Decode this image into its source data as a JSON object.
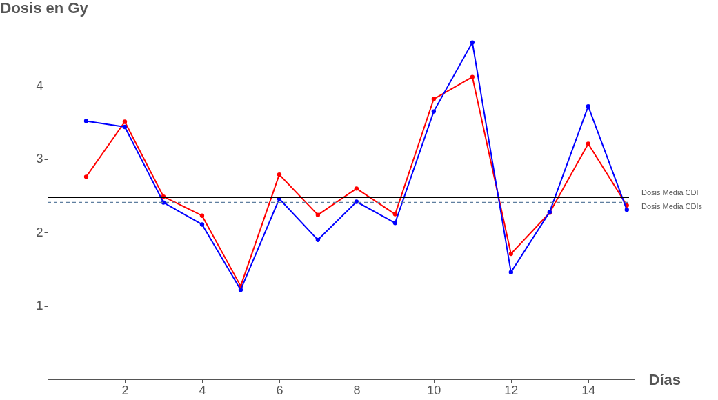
{
  "chart_data": {
    "type": "line",
    "xlabel": "Días",
    "ylabel": "Dosis en Gy",
    "x": [
      1,
      2,
      3,
      4,
      5,
      6,
      7,
      8,
      9,
      10,
      11,
      12,
      13,
      14,
      15
    ],
    "series": [
      {
        "color": "#0000ff",
        "values": [
          3.52,
          3.44,
          2.41,
          2.11,
          1.22,
          2.46,
          1.9,
          2.42,
          2.13,
          3.65,
          4.59,
          1.46,
          2.28,
          3.72,
          2.31
        ]
      },
      {
        "color": "#ff0000",
        "values": [
          2.76,
          3.51,
          2.49,
          2.23,
          1.27,
          2.79,
          2.24,
          2.6,
          2.25,
          3.82,
          4.12,
          1.71,
          2.27,
          3.21,
          2.37
        ]
      }
    ],
    "xlim": [
      0,
      15.2
    ],
    "ylim": [
      0,
      4.84
    ],
    "xticks": [
      2,
      4,
      6,
      8,
      10,
      12,
      14
    ],
    "yticks": [
      1,
      2,
      3,
      4
    ],
    "ref_lines": [
      {
        "axis": "y",
        "value": 2.48,
        "label": "Dosis Media CDI",
        "color": "#000000",
        "line_style": "solid"
      },
      {
        "axis": "y",
        "value": 2.41,
        "label": "Dosis Media CDIs",
        "color": "#5f7fa0",
        "line_style": "dashed"
      }
    ],
    "marker": "circle",
    "line_style": "solid",
    "grid": false
  }
}
